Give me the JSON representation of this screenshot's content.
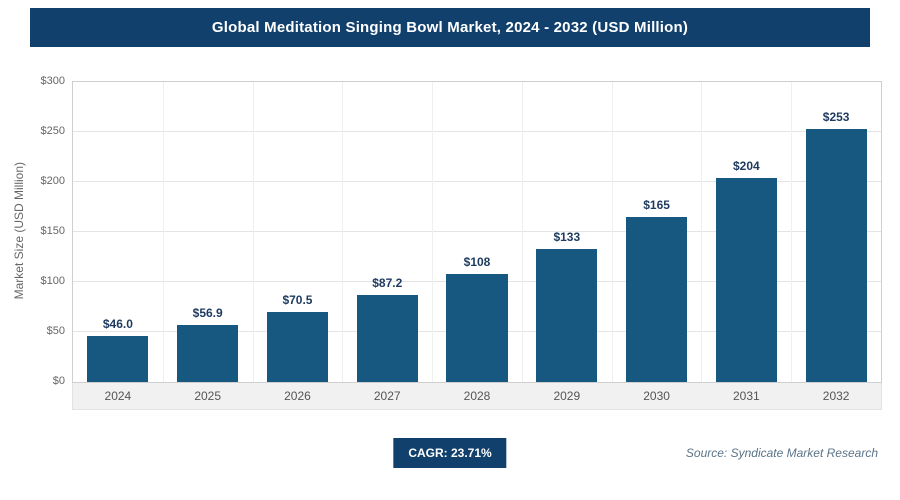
{
  "header": {
    "title": "Global Meditation Singing Bowl Market, 2024 - 2032 (USD Million)"
  },
  "chart_data": {
    "type": "bar",
    "title": "Global Meditation Singing Bowl Market, 2024 - 2032 (USD Million)",
    "categories": [
      "2024",
      "2025",
      "2026",
      "2027",
      "2028",
      "2029",
      "2030",
      "2031",
      "2032"
    ],
    "values": [
      46.0,
      56.9,
      70.5,
      87.2,
      108,
      133,
      165,
      204,
      253
    ],
    "bar_labels": [
      "$46.0",
      "$56.9",
      "$70.5",
      "$87.2",
      "$108",
      "$133",
      "$165",
      "$204",
      "$253"
    ],
    "xlabel": "",
    "ylabel": "Market Size (USD Million)",
    "ylim": [
      0,
      300
    ],
    "ytick_step": 50,
    "ytick_labels": [
      "$0",
      "$50",
      "$100",
      "$150",
      "$200",
      "$250",
      "$300"
    ],
    "grid": true,
    "legend": "none",
    "bar_color": "#16587f"
  },
  "footer": {
    "cagr_label": "CAGR: 23.71%",
    "source": "Source: Syndicate Market Research"
  },
  "colors": {
    "header_bg": "#11406d",
    "badge_bg": "#11406d",
    "bar": "#16587f",
    "value_label": "#1e3a5f"
  }
}
